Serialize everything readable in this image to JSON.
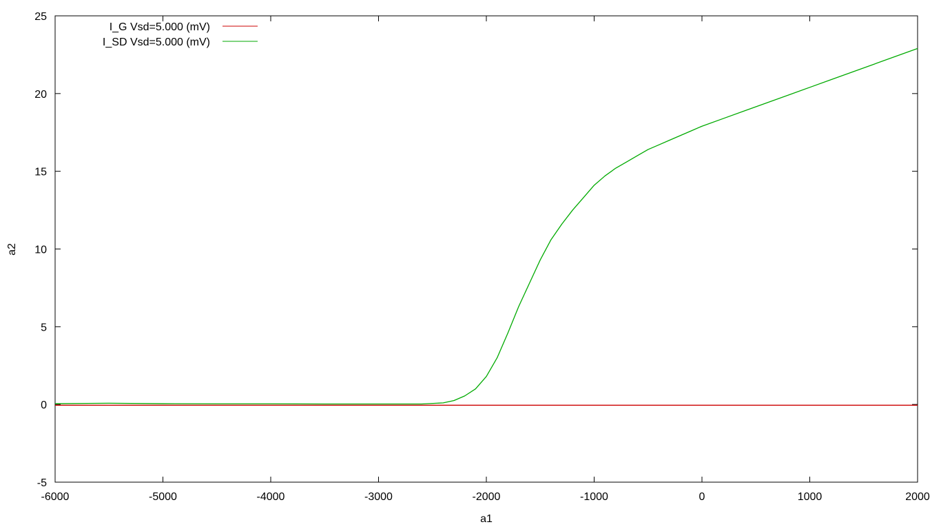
{
  "chart_data": {
    "type": "line",
    "title": "",
    "xlabel": "a1",
    "ylabel": "a2",
    "xlim": [
      -6000,
      2000
    ],
    "ylim": [
      -5,
      25
    ],
    "x_ticks": [
      -6000,
      -5000,
      -4000,
      -3000,
      -2000,
      -1000,
      0,
      1000,
      2000
    ],
    "y_ticks": [
      -5,
      0,
      5,
      10,
      15,
      20,
      25
    ],
    "grid": false,
    "legend_position": "top-left",
    "series": [
      {
        "name": "I_G Vsd=5.000 (mV)",
        "color": "#cc0000",
        "x": [
          -6000,
          -5000,
          -4000,
          -3000,
          -2500,
          -2000,
          -1500,
          -1000,
          -500,
          0,
          500,
          1000,
          1500,
          2000
        ],
        "y": [
          -0.05,
          -0.05,
          -0.05,
          -0.05,
          -0.05,
          -0.05,
          -0.05,
          -0.05,
          -0.05,
          -0.05,
          -0.05,
          -0.05,
          -0.05,
          -0.05
        ]
      },
      {
        "name": "I_SD Vsd=5.000 (mV)",
        "color": "#00aa00",
        "x": [
          -6000,
          -5500,
          -5000,
          -4500,
          -4000,
          -3500,
          -3000,
          -2600,
          -2400,
          -2300,
          -2200,
          -2100,
          -2000,
          -1900,
          -1800,
          -1700,
          -1600,
          -1500,
          -1400,
          -1300,
          -1200,
          -1100,
          -1000,
          -900,
          -800,
          -700,
          -600,
          -500,
          -400,
          -300,
          -200,
          -100,
          0,
          200,
          400,
          600,
          800,
          1000,
          1200,
          1400,
          1600,
          1800,
          2000
        ],
        "y": [
          0.05,
          0.08,
          0.05,
          0.04,
          0.04,
          0.03,
          0.03,
          0.03,
          0.1,
          0.25,
          0.55,
          1.0,
          1.8,
          3.0,
          4.6,
          6.3,
          7.8,
          9.3,
          10.6,
          11.6,
          12.5,
          13.3,
          14.1,
          14.7,
          15.2,
          15.6,
          16.0,
          16.4,
          16.7,
          17.0,
          17.3,
          17.6,
          17.9,
          18.4,
          18.9,
          19.4,
          19.9,
          20.4,
          20.9,
          21.4,
          21.9,
          22.4,
          22.9
        ]
      }
    ]
  }
}
